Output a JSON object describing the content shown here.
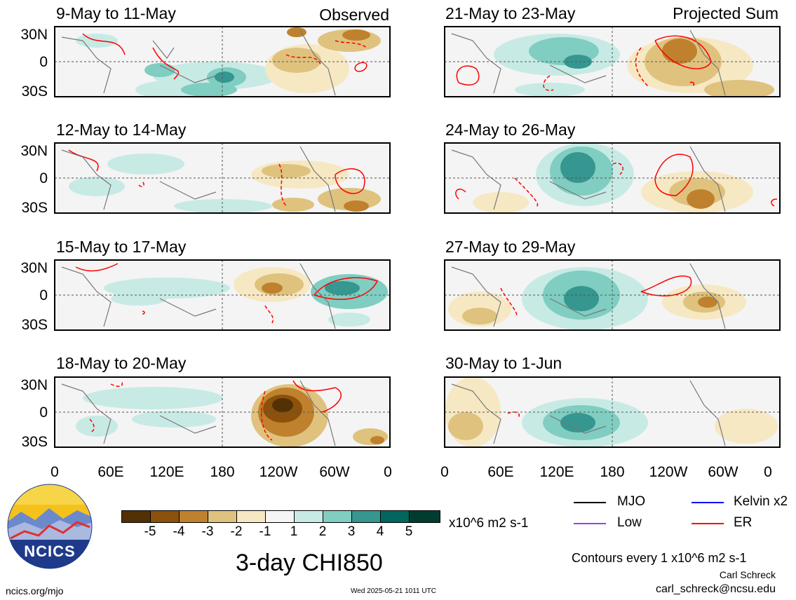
{
  "panels": [
    {
      "title": "9-May to 11-May",
      "tag": "Observed"
    },
    {
      "title": "12-May to 14-May",
      "tag": ""
    },
    {
      "title": "15-May to 17-May",
      "tag": ""
    },
    {
      "title": "18-May to 20-May",
      "tag": ""
    },
    {
      "title": "21-May to 23-May",
      "tag": "Projected Sum"
    },
    {
      "title": "24-May to 26-May",
      "tag": ""
    },
    {
      "title": "27-May to 29-May",
      "tag": ""
    },
    {
      "title": "30-May to 1-Jun",
      "tag": ""
    }
  ],
  "lat_labels": [
    "30N",
    "0",
    "30S"
  ],
  "lon_labels": [
    "0",
    "60E",
    "120E",
    "180",
    "120W",
    "60W",
    "0"
  ],
  "colorbar": {
    "labels": [
      "-5",
      "-4",
      "-3",
      "-2",
      "-1",
      "1",
      "2",
      "3",
      "4",
      "5"
    ],
    "colors": [
      "#543005",
      "#8c510a",
      "#bf812d",
      "#dfc27d",
      "#f6e8c3",
      "#f5f5f5",
      "#c7eae5",
      "#80cdc1",
      "#35978f",
      "#01665e",
      "#003c30"
    ],
    "units": "x10^6 m2 s-1"
  },
  "legend": {
    "mjo": {
      "label": "MJO",
      "color": "#000000"
    },
    "kelvin": {
      "label": "Kelvin x2",
      "color": "#0000ff"
    },
    "low": {
      "label": "Low",
      "color": "#a040e0"
    },
    "er": {
      "label": "ER",
      "color": "#ff0000"
    }
  },
  "main_title": "3-day CHI850",
  "contour_note": "Contours every 1 x10^6 m2 s-1",
  "author": "Carl Schreck",
  "email": "carl_schreck@ncsu.edu",
  "website": "ncics.org/mjo",
  "timestamp": "Wed 2025-05-21 1011 UTC",
  "logo_text": "NCICS"
}
